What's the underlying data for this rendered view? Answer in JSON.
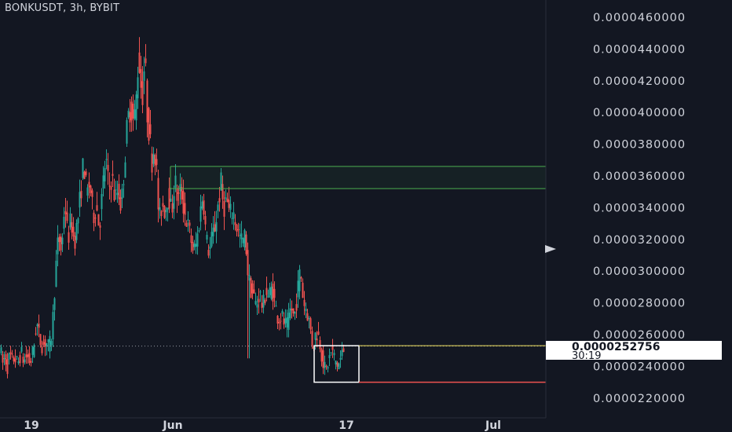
{
  "title": "BONKUSDT, 3h, BYBIT",
  "colors": {
    "background": "#131722",
    "up": "#26a69a",
    "down": "#ef5350",
    "zone_green": "#4caf50",
    "line_yellow": "#f5e663",
    "line_red": "#ef5350",
    "axis_text": "#d1d4dc"
  },
  "current_price": {
    "value": "0.0000252756",
    "countdown": "30:19"
  },
  "chart_data": {
    "type": "candlestick",
    "title": "BONKUSDT, 3h, BYBIT",
    "y_axis": {
      "ticks": [
        "0.0000220000",
        "0.0000240000",
        "0.0000260000",
        "0.0000280000",
        "0.0000300000",
        "0.0000320000",
        "0.0000340000",
        "0.0000360000",
        "0.0000380000",
        "0.0000400000",
        "0.0000420000",
        "0.0000440000",
        "0.0000460000"
      ],
      "range": [
        2.125e-05,
        4.75e-05
      ]
    },
    "x_axis": {
      "ticks": [
        "19",
        "Jun",
        "17",
        "Jul"
      ]
    },
    "grid": false,
    "price_series": [
      [
        0,
        2.5e-05
      ],
      [
        3,
        2.42e-05
      ],
      [
        6,
        2.46e-05
      ],
      [
        9,
        2.4e-05
      ],
      [
        12,
        2.47e-05
      ],
      [
        15,
        2.43e-05
      ],
      [
        18,
        2.46e-05
      ],
      [
        22,
        2.41e-05
      ],
      [
        26,
        2.49e-05
      ],
      [
        30,
        2.43e-05
      ],
      [
        34,
        2.47e-05
      ],
      [
        38,
        2.42e-05
      ],
      [
        42,
        2.5e-05
      ],
      [
        46,
        2.68e-05
      ],
      [
        50,
        2.57e-05
      ],
      [
        54,
        2.53e-05
      ],
      [
        58,
        2.56e-05
      ],
      [
        62,
        2.51e-05
      ],
      [
        66,
        2.62e-05
      ],
      [
        70,
        2.98e-05
      ],
      [
        74,
        3.22e-05
      ],
      [
        78,
        3.12e-05
      ],
      [
        82,
        3.45e-05
      ],
      [
        86,
        3.2e-05
      ],
      [
        90,
        3.33e-05
      ],
      [
        94,
        3.18e-05
      ],
      [
        98,
        3.3e-05
      ],
      [
        102,
        3.48e-05
      ],
      [
        106,
        3.7e-05
      ],
      [
        110,
        3.48e-05
      ],
      [
        114,
        3.56e-05
      ],
      [
        118,
        3.34e-05
      ],
      [
        122,
        3.42e-05
      ],
      [
        126,
        3.28e-05
      ],
      [
        130,
        3.5e-05
      ],
      [
        134,
        3.72e-05
      ],
      [
        138,
        3.52e-05
      ],
      [
        142,
        3.6e-05
      ],
      [
        146,
        3.45e-05
      ],
      [
        150,
        3.52e-05
      ],
      [
        154,
        3.4e-05
      ],
      [
        158,
        3.68e-05
      ],
      [
        162,
        3.95e-05
      ],
      [
        166,
        4.05e-05
      ],
      [
        170,
        3.92e-05
      ],
      [
        174,
        4.15e-05
      ],
      [
        176,
        4.4e-05
      ],
      [
        178,
        4.2e-05
      ],
      [
        181,
        4.12e-05
      ],
      [
        184,
        4.35e-05
      ],
      [
        187,
        4e-05
      ],
      [
        190,
        3.85e-05
      ],
      [
        193,
        3.7e-05
      ],
      [
        196,
        3.8e-05
      ],
      [
        199,
        3.62e-05
      ],
      [
        202,
        3.3e-05
      ],
      [
        206,
        3.43e-05
      ],
      [
        210,
        3.38e-05
      ],
      [
        214,
        3.5e-05
      ],
      [
        218,
        3.36e-05
      ],
      [
        222,
        3.58e-05
      ],
      [
        226,
        3.44e-05
      ],
      [
        230,
        3.52e-05
      ],
      [
        234,
        3.38e-05
      ],
      [
        238,
        3.3e-05
      ],
      [
        242,
        3.22e-05
      ],
      [
        246,
        3.12e-05
      ],
      [
        250,
        3.18e-05
      ],
      [
        254,
        3.35e-05
      ],
      [
        258,
        3.5e-05
      ],
      [
        262,
        3.2e-05
      ],
      [
        266,
        3.12e-05
      ],
      [
        270,
        3.22e-05
      ],
      [
        274,
        3.3e-05
      ],
      [
        278,
        3.45e-05
      ],
      [
        281,
        3.55e-05
      ],
      [
        284,
        3.4e-05
      ],
      [
        288,
        3.45e-05
      ],
      [
        292,
        3.35e-05
      ],
      [
        296,
        3.38e-05
      ],
      [
        300,
        3.3e-05
      ],
      [
        304,
        3.22e-05
      ],
      [
        308,
        3.18e-05
      ],
      [
        312,
        3.22e-05
      ],
      [
        315,
        3e-05
      ],
      [
        318,
        2.9e-05
      ],
      [
        322,
        2.85e-05
      ],
      [
        326,
        2.78e-05
      ],
      [
        330,
        2.87e-05
      ],
      [
        334,
        2.76e-05
      ],
      [
        338,
        2.88e-05
      ],
      [
        342,
        2.84e-05
      ],
      [
        346,
        2.9e-05
      ],
      [
        350,
        2.78e-05
      ],
      [
        354,
        2.7e-05
      ],
      [
        358,
        2.72e-05
      ],
      [
        362,
        2.66e-05
      ],
      [
        366,
        2.65e-05
      ],
      [
        370,
        2.78e-05
      ],
      [
        374,
        2.7e-05
      ],
      [
        378,
        2.85e-05
      ],
      [
        382,
        3.02e-05
      ],
      [
        386,
        2.8e-05
      ],
      [
        390,
        2.76e-05
      ],
      [
        394,
        2.66e-05
      ],
      [
        398,
        2.52e-05
      ],
      [
        402,
        2.62e-05
      ],
      [
        406,
        2.58e-05
      ],
      [
        410,
        2.45e-05
      ],
      [
        414,
        2.36e-05
      ],
      [
        418,
        2.44e-05
      ],
      [
        422,
        2.5e-05
      ],
      [
        426,
        2.44e-05
      ],
      [
        430,
        2.4e-05
      ],
      [
        434,
        2.46e-05
      ],
      [
        438,
        2.52e-05
      ]
    ],
    "annotations": {
      "green_zone": {
        "y_top": 3.66e-05,
        "y_bottom": 3.52e-05,
        "x_start": 217
      },
      "white_box": {
        "y_top": 2.53e-05,
        "y_bottom": 2.3e-05,
        "x_start": 400,
        "x_end": 457
      },
      "yellow_line": {
        "y": 2.53e-05,
        "x_start": 457
      },
      "red_line": {
        "y": 2.3e-05,
        "x_start": 457
      },
      "dotted_price_line": {
        "y": 2.52756e-05
      },
      "spike_wick": {
        "x": 316,
        "low": 2.45e-05
      }
    }
  }
}
